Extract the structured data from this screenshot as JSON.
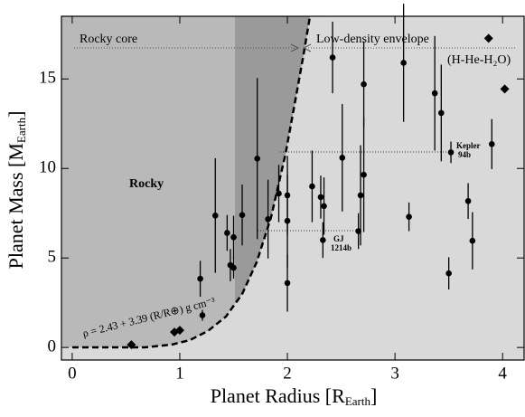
{
  "chart_data": {
    "type": "scatter",
    "xlabel": {
      "text": "Planet Radius [R",
      "sub": "Earth",
      "end": "]"
    },
    "ylabel": {
      "text": "Planet Mass [M",
      "sub": "Earth",
      "end": "]"
    },
    "xlim": [
      -0.1,
      4.2
    ],
    "xticks": [
      0,
      1,
      2,
      3,
      4
    ],
    "ylim": [
      -0.7,
      18.5
    ],
    "yticks": [
      0,
      5,
      10,
      15
    ],
    "annotations": {
      "rocky_core": "Rocky core",
      "envelope": "Low-density envelope",
      "envelope_comp": "(H-He-H₂O)",
      "rocky": "Rocky",
      "kepler": [
        "Kepler",
        "94b"
      ],
      "gj": [
        "GJ",
        "1214b"
      ],
      "density": "ρ = 2.43 + 3.39 (R/R⊕) g cm⁻³"
    },
    "series": [
      {
        "marker": "circle",
        "color": "#000000",
        "x": [
          1.21,
          1.19,
          1.33,
          1.44,
          1.47,
          1.5,
          1.5,
          1.58,
          1.72,
          1.82,
          1.92,
          2.0,
          2.0,
          2.0,
          2.23,
          2.31,
          2.34,
          2.33,
          2.42,
          2.51,
          2.66,
          2.68,
          2.71,
          2.71,
          3.08,
          3.13,
          3.37,
          3.43,
          3.52,
          3.5,
          3.68,
          3.72,
          3.9
        ],
        "values": [
          1.8,
          3.84,
          7.37,
          6.4,
          4.6,
          6.16,
          4.45,
          7.4,
          10.55,
          7.17,
          8.6,
          8.5,
          7.07,
          3.6,
          9.0,
          8.4,
          7.9,
          6.0,
          16.2,
          10.6,
          6.5,
          8.5,
          9.65,
          14.7,
          15.9,
          7.3,
          14.2,
          13.1,
          10.9,
          4.14,
          8.18,
          5.96,
          11.36
        ],
        "yerr": [
          0.3,
          1.0,
          3.2,
          1.0,
          0.9,
          1.2,
          0.6,
          1.7,
          4.5,
          2.2,
          1.6,
          2.2,
          2.6,
          1.6,
          2.0,
          1.2,
          1.6,
          1.0,
          2.0,
          3.0,
          1.0,
          2.8,
          3.2,
          2.4,
          3.3,
          0.8,
          3.2,
          2.7,
          0.6,
          0.9,
          1.0,
          1.6,
          1.4
        ]
      },
      {
        "marker": "diamond",
        "color": "#000000",
        "x": [
          0.55,
          0.95,
          1.0,
          3.87,
          4.02
        ],
        "values": [
          0.15,
          0.86,
          0.96,
          17.27,
          14.44
        ]
      }
    ]
  }
}
